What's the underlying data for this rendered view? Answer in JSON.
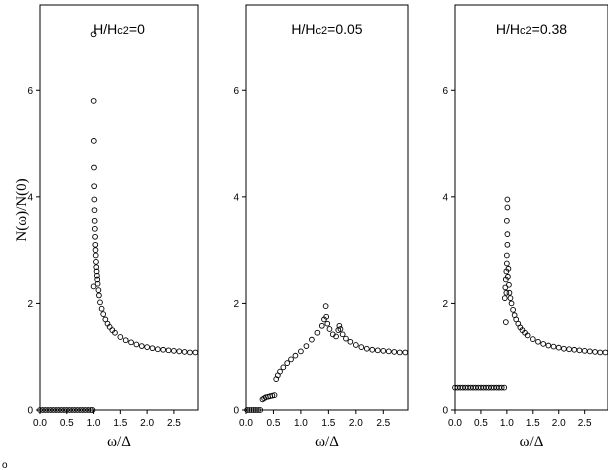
{
  "figure": {
    "ylabel": "N(ω)/N(0)",
    "xlabel": "ω/Δ",
    "corner_mark": "o"
  },
  "chart_data": [
    {
      "type": "scatter",
      "title": "H/Hc2=0",
      "title_main": "H/H",
      "title_sub": "c2",
      "title_tail": "=0",
      "xlabel": "ω/Δ",
      "ylabel": "N(ω)/N(0)",
      "xlim": [
        0,
        2.95
      ],
      "ylim": [
        0,
        7.6
      ],
      "xticks": [
        "0.0",
        "0.5",
        "1.0",
        "1.5",
        "2.0",
        "2.5"
      ],
      "xtick_values": [
        0,
        0.5,
        1.0,
        1.5,
        2.0,
        2.5
      ],
      "yticks": [
        "0",
        "2",
        "4",
        "6"
      ],
      "ytick_values": [
        0,
        2,
        4,
        6
      ],
      "points": [
        [
          0.0,
          0
        ],
        [
          0.05,
          0
        ],
        [
          0.1,
          0
        ],
        [
          0.15,
          0
        ],
        [
          0.2,
          0
        ],
        [
          0.25,
          0
        ],
        [
          0.3,
          0
        ],
        [
          0.35,
          0
        ],
        [
          0.4,
          0
        ],
        [
          0.45,
          0
        ],
        [
          0.5,
          0
        ],
        [
          0.55,
          0
        ],
        [
          0.6,
          0
        ],
        [
          0.65,
          0
        ],
        [
          0.7,
          0
        ],
        [
          0.75,
          0
        ],
        [
          0.8,
          0
        ],
        [
          0.85,
          0
        ],
        [
          0.9,
          0
        ],
        [
          0.95,
          0
        ],
        [
          0.98,
          0
        ],
        [
          1.0,
          7.05
        ],
        [
          1.002,
          5.8
        ],
        [
          1.005,
          5.05
        ],
        [
          1.008,
          4.55
        ],
        [
          1.011,
          4.2
        ],
        [
          1.014,
          3.95
        ],
        [
          1.017,
          3.75
        ],
        [
          1.02,
          3.55
        ],
        [
          1.024,
          3.4
        ],
        [
          1.028,
          3.25
        ],
        [
          1.032,
          3.1
        ],
        [
          1.036,
          3.0
        ],
        [
          1.04,
          2.9
        ],
        [
          1.045,
          2.78
        ],
        [
          1.05,
          2.68
        ],
        [
          1.056,
          2.6
        ],
        [
          1.062,
          2.52
        ],
        [
          1.068,
          2.45
        ],
        [
          1.075,
          2.37
        ],
        [
          1.0,
          2.32
        ],
        [
          1.09,
          2.25
        ],
        [
          1.1,
          2.15
        ],
        [
          1.12,
          2.02
        ],
        [
          1.15,
          1.9
        ],
        [
          1.18,
          1.8
        ],
        [
          1.22,
          1.7
        ],
        [
          1.26,
          1.62
        ],
        [
          1.3,
          1.56
        ],
        [
          1.35,
          1.5
        ],
        [
          1.4,
          1.45
        ],
        [
          1.5,
          1.37
        ],
        [
          1.6,
          1.31
        ],
        [
          1.7,
          1.27
        ],
        [
          1.8,
          1.23
        ],
        [
          1.9,
          1.2
        ],
        [
          2.0,
          1.18
        ],
        [
          2.1,
          1.16
        ],
        [
          2.2,
          1.14
        ],
        [
          2.3,
          1.13
        ],
        [
          2.4,
          1.12
        ],
        [
          2.5,
          1.11
        ],
        [
          2.6,
          1.1
        ],
        [
          2.7,
          1.09
        ],
        [
          2.8,
          1.08
        ],
        [
          2.9,
          1.08
        ]
      ]
    },
    {
      "type": "scatter",
      "title": "H/Hc2=0.05",
      "title_main": "H/H",
      "title_sub": "c2",
      "title_tail": "=0.05",
      "xlabel": "ω/Δ",
      "xlim": [
        0,
        2.95
      ],
      "ylim": [
        0,
        7.6
      ],
      "xticks": [
        "0.0",
        "0.5",
        "1.0",
        "1.5",
        "2.0",
        "2.5"
      ],
      "xtick_values": [
        0,
        0.5,
        1.0,
        1.5,
        2.0,
        2.5
      ],
      "yticks": [
        "0",
        "2",
        "4",
        "6"
      ],
      "ytick_values": [
        0,
        2,
        4,
        6
      ],
      "points": [
        [
          0.02,
          0
        ],
        [
          0.06,
          0
        ],
        [
          0.1,
          0
        ],
        [
          0.14,
          0
        ],
        [
          0.18,
          0
        ],
        [
          0.22,
          0
        ],
        [
          0.26,
          0
        ],
        [
          0.3,
          0.2
        ],
        [
          0.33,
          0.22
        ],
        [
          0.36,
          0.24
        ],
        [
          0.4,
          0.25
        ],
        [
          0.44,
          0.26
        ],
        [
          0.48,
          0.27
        ],
        [
          0.52,
          0.28
        ],
        [
          0.55,
          0.58
        ],
        [
          0.58,
          0.65
        ],
        [
          0.62,
          0.72
        ],
        [
          0.68,
          0.8
        ],
        [
          0.75,
          0.88
        ],
        [
          0.82,
          0.95
        ],
        [
          0.9,
          1.02
        ],
        [
          1.0,
          1.1
        ],
        [
          1.1,
          1.2
        ],
        [
          1.2,
          1.32
        ],
        [
          1.3,
          1.45
        ],
        [
          1.38,
          1.58
        ],
        [
          1.42,
          1.7
        ],
        [
          1.45,
          1.95
        ],
        [
          1.46,
          1.75
        ],
        [
          1.48,
          1.62
        ],
        [
          1.52,
          1.52
        ],
        [
          1.58,
          1.42
        ],
        [
          1.64,
          1.38
        ],
        [
          1.68,
          1.5
        ],
        [
          1.7,
          1.58
        ],
        [
          1.72,
          1.52
        ],
        [
          1.76,
          1.42
        ],
        [
          1.82,
          1.34
        ],
        [
          1.9,
          1.28
        ],
        [
          2.0,
          1.22
        ],
        [
          2.1,
          1.18
        ],
        [
          2.2,
          1.15
        ],
        [
          2.3,
          1.13
        ],
        [
          2.4,
          1.12
        ],
        [
          2.5,
          1.11
        ],
        [
          2.6,
          1.1
        ],
        [
          2.7,
          1.09
        ],
        [
          2.8,
          1.08
        ],
        [
          2.9,
          1.08
        ]
      ]
    },
    {
      "type": "scatter",
      "title": "H/Hc2=0.38",
      "title_main": "H/H",
      "title_sub": "c2",
      "title_tail": "=0.38",
      "xlabel": "ω/Δ",
      "xlim": [
        0,
        2.95
      ],
      "ylim": [
        0,
        7.6
      ],
      "xticks": [
        "0.0",
        "0.5",
        "1.0",
        "1.5",
        "2.0",
        "2.5"
      ],
      "xtick_values": [
        0,
        0.5,
        1.0,
        1.5,
        2.0,
        2.5
      ],
      "yticks": [
        "0",
        "2",
        "4",
        "6"
      ],
      "ytick_values": [
        0,
        2,
        4,
        6
      ],
      "points": [
        [
          0.0,
          0.42
        ],
        [
          0.05,
          0.42
        ],
        [
          0.1,
          0.42
        ],
        [
          0.15,
          0.42
        ],
        [
          0.2,
          0.42
        ],
        [
          0.25,
          0.42
        ],
        [
          0.3,
          0.42
        ],
        [
          0.35,
          0.42
        ],
        [
          0.4,
          0.42
        ],
        [
          0.45,
          0.42
        ],
        [
          0.5,
          0.42
        ],
        [
          0.55,
          0.42
        ],
        [
          0.6,
          0.42
        ],
        [
          0.65,
          0.42
        ],
        [
          0.7,
          0.42
        ],
        [
          0.75,
          0.42
        ],
        [
          0.8,
          0.42
        ],
        [
          0.85,
          0.42
        ],
        [
          0.9,
          0.42
        ],
        [
          0.95,
          0.42
        ],
        [
          0.98,
          1.65
        ],
        [
          0.96,
          2.1
        ],
        [
          0.97,
          2.3
        ],
        [
          0.98,
          2.45
        ],
        [
          0.99,
          2.6
        ],
        [
          1.0,
          2.75
        ],
        [
          1.0,
          2.9
        ],
        [
          1.01,
          3.1
        ],
        [
          1.01,
          3.3
        ],
        [
          1.0,
          3.55
        ],
        [
          1.01,
          3.8
        ],
        [
          1.01,
          3.95
        ],
        [
          0.99,
          2.2
        ],
        [
          1.02,
          2.5
        ],
        [
          1.03,
          2.65
        ],
        [
          1.04,
          2.35
        ],
        [
          1.05,
          2.2
        ],
        [
          1.07,
          2.1
        ],
        [
          1.09,
          2.0
        ],
        [
          1.12,
          1.88
        ],
        [
          1.15,
          1.78
        ],
        [
          1.18,
          1.7
        ],
        [
          1.22,
          1.62
        ],
        [
          1.26,
          1.55
        ],
        [
          1.3,
          1.5
        ],
        [
          1.35,
          1.45
        ],
        [
          1.4,
          1.4
        ],
        [
          1.5,
          1.33
        ],
        [
          1.6,
          1.28
        ],
        [
          1.7,
          1.24
        ],
        [
          1.8,
          1.21
        ],
        [
          1.9,
          1.19
        ],
        [
          2.0,
          1.17
        ],
        [
          2.1,
          1.15
        ],
        [
          2.2,
          1.14
        ],
        [
          2.3,
          1.13
        ],
        [
          2.4,
          1.12
        ],
        [
          2.5,
          1.11
        ],
        [
          2.6,
          1.1
        ],
        [
          2.7,
          1.09
        ],
        [
          2.8,
          1.08
        ],
        [
          2.9,
          1.08
        ]
      ]
    }
  ]
}
